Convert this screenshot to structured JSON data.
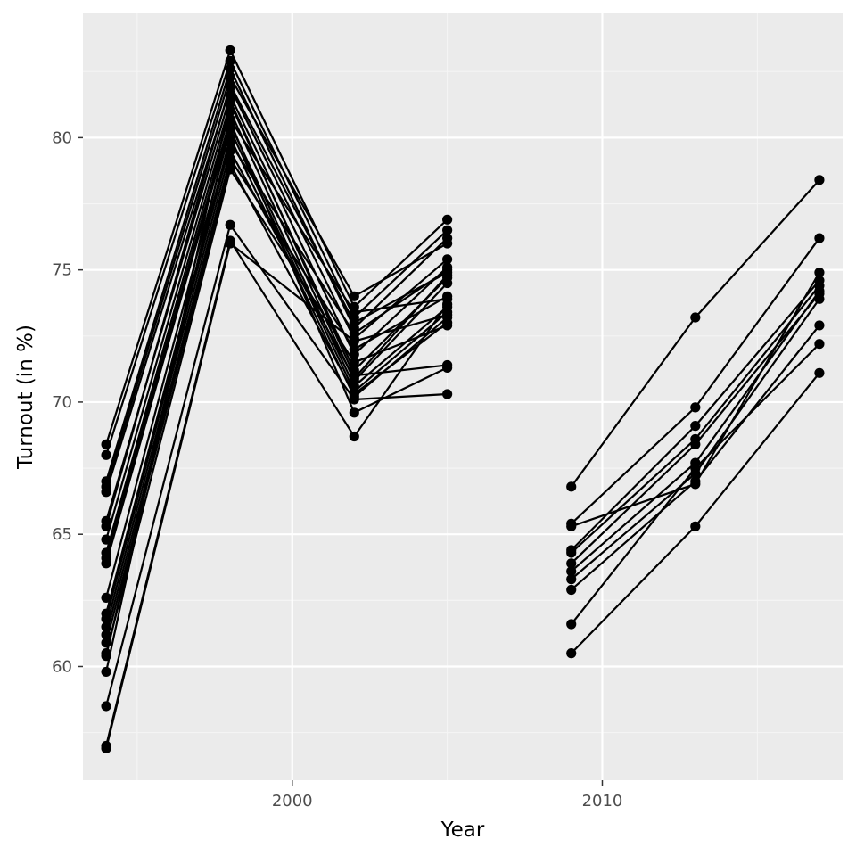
{
  "chart_data": {
    "type": "line",
    "title": "",
    "xlabel": "Year",
    "ylabel": "Turnout (in %)",
    "xlim": [
      1993.25,
      2017.75
    ],
    "ylim": [
      55.7,
      84.7
    ],
    "x_ticks": [
      2000,
      2010
    ],
    "x_tick_labels": [
      "2000",
      "2010"
    ],
    "y_ticks": [
      60,
      65,
      70,
      75,
      80
    ],
    "y_tick_labels": [
      "60",
      "65",
      "70",
      "75",
      "80"
    ],
    "grid": true,
    "legend": "none",
    "colors": {
      "panel": "#ebebeb",
      "grid_major": "#ffffff",
      "grid_minor": "#f5f5f5",
      "line": "#000000",
      "point": "#000000"
    },
    "groups": [
      {
        "x": [
          1994,
          1998,
          2002,
          2005
        ],
        "lines": [
          [
            68.4,
            83.3,
            73.6,
            76.9
          ],
          [
            68.0,
            82.9,
            73.2,
            76.5
          ],
          [
            67.0,
            82.6,
            72.8,
            76.2
          ],
          [
            66.8,
            82.3,
            74.0,
            76.0
          ],
          [
            66.6,
            81.9,
            72.4,
            75.4
          ],
          [
            65.5,
            81.6,
            71.8,
            75.1
          ],
          [
            65.3,
            82.0,
            73.0,
            74.9
          ],
          [
            64.8,
            81.3,
            71.2,
            74.7
          ],
          [
            64.3,
            81.0,
            70.8,
            74.5
          ],
          [
            64.1,
            80.7,
            73.4,
            73.9
          ],
          [
            63.9,
            80.5,
            70.6,
            73.6
          ],
          [
            62.6,
            80.3,
            70.4,
            73.4
          ],
          [
            62.0,
            80.0,
            70.2,
            73.2
          ],
          [
            61.8,
            79.8,
            72.6,
            75.0
          ],
          [
            61.5,
            79.5,
            70.9,
            74.8
          ],
          [
            61.2,
            79.2,
            72.0,
            74.0
          ],
          [
            60.9,
            79.0,
            70.3,
            73.0
          ],
          [
            60.5,
            78.8,
            71.5,
            72.9
          ],
          [
            60.4,
            80.6,
            69.6,
            71.3
          ],
          [
            59.8,
            81.4,
            71.0,
            71.4
          ],
          [
            58.5,
            76.7,
            70.1,
            70.3
          ],
          [
            57.0,
            76.1,
            68.7,
            73.7
          ],
          [
            56.9,
            76.0,
            72.3,
            73.3
          ]
        ]
      },
      {
        "x": [
          2009,
          2013,
          2017
        ],
        "lines": [
          [
            66.8,
            73.2,
            78.4
          ],
          [
            65.4,
            69.8,
            76.2
          ],
          [
            65.3,
            66.9,
            74.9
          ],
          [
            64.4,
            69.1,
            74.6
          ],
          [
            64.3,
            68.6,
            74.4
          ],
          [
            63.9,
            68.4,
            74.1
          ],
          [
            63.6,
            67.7,
            74.2
          ],
          [
            63.3,
            67.3,
            73.9
          ],
          [
            62.9,
            67.0,
            72.9
          ],
          [
            61.6,
            67.5,
            72.2
          ],
          [
            60.5,
            65.3,
            71.1
          ]
        ]
      }
    ]
  }
}
